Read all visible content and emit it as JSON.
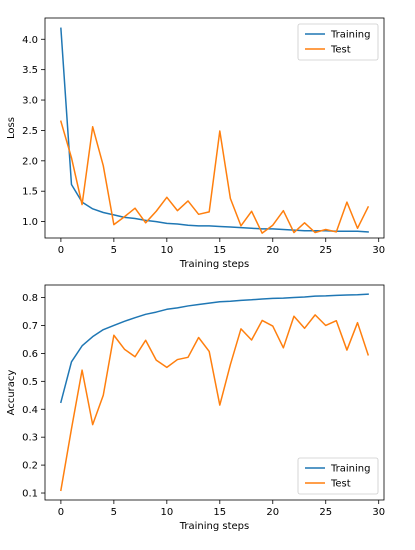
{
  "colors": {
    "training": "#1f77b4",
    "test": "#ff7f0e"
  },
  "chart_data": [
    {
      "type": "line",
      "title": "",
      "xlabel": "Training steps",
      "ylabel": "Loss",
      "xlim": [
        -1.5,
        30.5
      ],
      "ylim": [
        0.73,
        4.35
      ],
      "xticks": [
        0,
        5,
        10,
        15,
        20,
        25,
        30
      ],
      "yticks": [
        1.0,
        1.5,
        2.0,
        2.5,
        3.0,
        3.5,
        4.0
      ],
      "ytick_labels": [
        "1.0",
        "1.5",
        "2.0",
        "2.5",
        "3.0",
        "3.5",
        "4.0"
      ],
      "legend_position": "upper right",
      "grid": false,
      "x": [
        0,
        1,
        2,
        3,
        4,
        5,
        6,
        7,
        8,
        9,
        10,
        11,
        12,
        13,
        14,
        15,
        16,
        17,
        18,
        19,
        20,
        21,
        22,
        23,
        24,
        25,
        26,
        27,
        28,
        29
      ],
      "series": [
        {
          "name": "Training",
          "color": "#1f77b4",
          "values": [
            4.18,
            1.61,
            1.32,
            1.21,
            1.15,
            1.11,
            1.07,
            1.05,
            1.02,
            1.0,
            0.97,
            0.96,
            0.94,
            0.93,
            0.93,
            0.92,
            0.91,
            0.9,
            0.89,
            0.88,
            0.88,
            0.87,
            0.86,
            0.85,
            0.85,
            0.85,
            0.84,
            0.84,
            0.84,
            0.83
          ]
        },
        {
          "name": "Test",
          "color": "#ff7f0e",
          "values": [
            2.65,
            2.05,
            1.28,
            2.56,
            1.92,
            0.95,
            1.08,
            1.22,
            0.98,
            1.17,
            1.4,
            1.18,
            1.34,
            1.12,
            1.16,
            2.49,
            1.38,
            0.93,
            1.17,
            0.81,
            0.94,
            1.18,
            0.82,
            0.98,
            0.82,
            0.87,
            0.83,
            1.32,
            0.89,
            1.24
          ]
        }
      ]
    },
    {
      "type": "line",
      "title": "",
      "xlabel": "Training steps",
      "ylabel": "Accuracy",
      "xlim": [
        -1.5,
        30.5
      ],
      "ylim": [
        0.075,
        0.845
      ],
      "xticks": [
        0,
        5,
        10,
        15,
        20,
        25,
        30
      ],
      "yticks": [
        0.1,
        0.2,
        0.3,
        0.4,
        0.5,
        0.6,
        0.7,
        0.8
      ],
      "ytick_labels": [
        "0.1",
        "0.2",
        "0.3",
        "0.4",
        "0.5",
        "0.6",
        "0.7",
        "0.8"
      ],
      "legend_position": "lower right",
      "grid": false,
      "x": [
        0,
        1,
        2,
        3,
        4,
        5,
        6,
        7,
        8,
        9,
        10,
        11,
        12,
        13,
        14,
        15,
        16,
        17,
        18,
        19,
        20,
        21,
        22,
        23,
        24,
        25,
        26,
        27,
        28,
        29
      ],
      "series": [
        {
          "name": "Training",
          "color": "#1f77b4",
          "values": [
            0.425,
            0.57,
            0.627,
            0.66,
            0.685,
            0.7,
            0.715,
            0.728,
            0.74,
            0.748,
            0.758,
            0.763,
            0.77,
            0.775,
            0.78,
            0.785,
            0.787,
            0.79,
            0.792,
            0.795,
            0.797,
            0.798,
            0.8,
            0.802,
            0.805,
            0.806,
            0.808,
            0.809,
            0.81,
            0.812
          ]
        },
        {
          "name": "Test",
          "color": "#ff7f0e",
          "values": [
            0.11,
            0.33,
            0.54,
            0.345,
            0.45,
            0.665,
            0.615,
            0.588,
            0.647,
            0.576,
            0.55,
            0.578,
            0.586,
            0.657,
            0.607,
            0.415,
            0.56,
            0.688,
            0.648,
            0.718,
            0.698,
            0.62,
            0.733,
            0.69,
            0.738,
            0.7,
            0.717,
            0.612,
            0.71,
            0.595
          ]
        }
      ]
    }
  ]
}
